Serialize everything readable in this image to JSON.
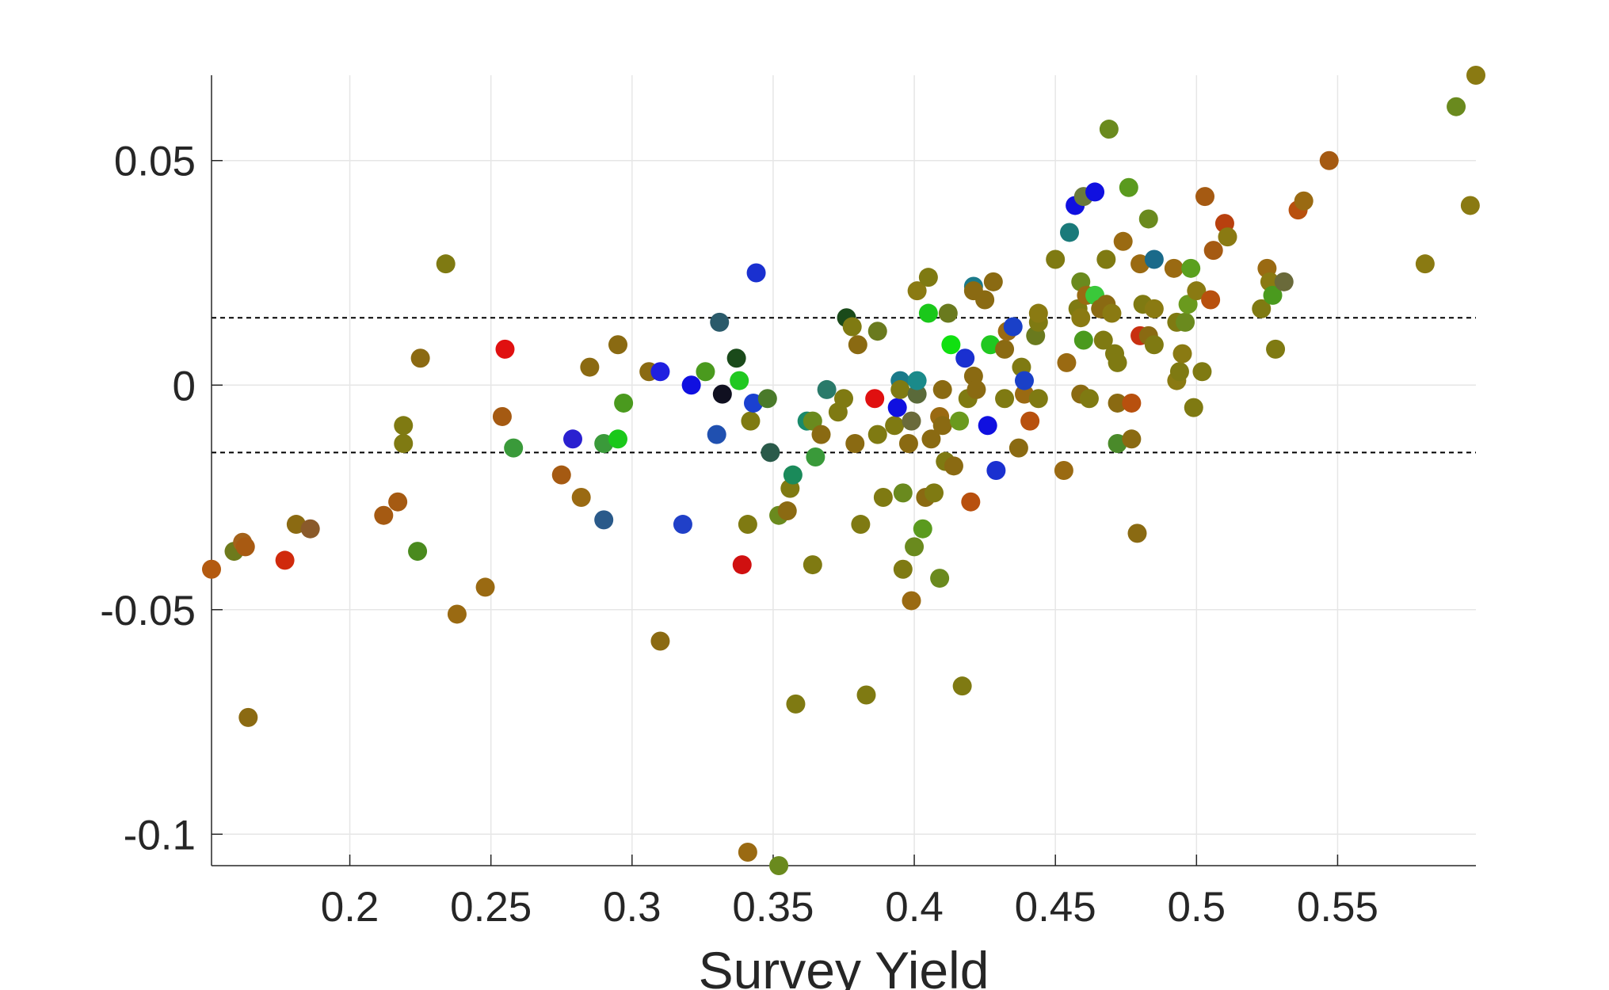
{
  "chart_data": {
    "type": "scatter",
    "title": "",
    "xlabel": "Survey Yield",
    "ylabel": "",
    "xlim": [
      0.151,
      0.599
    ],
    "ylim": [
      -0.107,
      0.069
    ],
    "xticks": [
      0.2,
      0.25,
      0.3,
      0.35,
      0.4,
      0.45,
      0.5,
      0.55
    ],
    "xtick_labels": [
      "0.2",
      "0.25",
      "0.3",
      "0.35",
      "0.4",
      "0.45",
      "0.5",
      "0.55"
    ],
    "yticks": [
      -0.1,
      -0.05,
      0,
      0.05
    ],
    "ytick_labels": [
      "-0.1",
      "-0.05",
      "0",
      "0.05"
    ],
    "grid": true,
    "reference_lines": [
      0.015,
      -0.015
    ],
    "reference_line_style": "dashed",
    "points": [
      {
        "x": 0.151,
        "y": -0.041,
        "color": "#b35a10"
      },
      {
        "x": 0.159,
        "y": -0.037,
        "color": "#6e7a1c"
      },
      {
        "x": 0.162,
        "y": -0.035,
        "color": "#a4621a"
      },
      {
        "x": 0.163,
        "y": -0.036,
        "color": "#a85a12"
      },
      {
        "x": 0.164,
        "y": -0.074,
        "color": "#8b6a12"
      },
      {
        "x": 0.177,
        "y": -0.039,
        "color": "#d02a0c"
      },
      {
        "x": 0.181,
        "y": -0.031,
        "color": "#8b6a12"
      },
      {
        "x": 0.186,
        "y": -0.032,
        "color": "#8a5a2a"
      },
      {
        "x": 0.212,
        "y": -0.029,
        "color": "#a55a12"
      },
      {
        "x": 0.217,
        "y": -0.026,
        "color": "#a55a12"
      },
      {
        "x": 0.219,
        "y": -0.009,
        "color": "#7f7a12"
      },
      {
        "x": 0.219,
        "y": -0.013,
        "color": "#7f7a12"
      },
      {
        "x": 0.224,
        "y": -0.037,
        "color": "#4a8a1e"
      },
      {
        "x": 0.225,
        "y": 0.006,
        "color": "#8b6a12"
      },
      {
        "x": 0.234,
        "y": 0.027,
        "color": "#7f7a12"
      },
      {
        "x": 0.238,
        "y": -0.051,
        "color": "#9a6a12"
      },
      {
        "x": 0.248,
        "y": -0.045,
        "color": "#9a6a12"
      },
      {
        "x": 0.254,
        "y": -0.007,
        "color": "#a55a12"
      },
      {
        "x": 0.255,
        "y": 0.008,
        "color": "#e01010"
      },
      {
        "x": 0.258,
        "y": -0.014,
        "color": "#3a9a3a"
      },
      {
        "x": 0.275,
        "y": -0.02,
        "color": "#a55a12"
      },
      {
        "x": 0.279,
        "y": -0.012,
        "color": "#2a20d0"
      },
      {
        "x": 0.282,
        "y": -0.025,
        "color": "#9a6a12"
      },
      {
        "x": 0.285,
        "y": 0.004,
        "color": "#8b6a12"
      },
      {
        "x": 0.29,
        "y": -0.013,
        "color": "#3a9a3a"
      },
      {
        "x": 0.29,
        "y": -0.03,
        "color": "#2a5a8a"
      },
      {
        "x": 0.295,
        "y": -0.012,
        "color": "#1ac81a"
      },
      {
        "x": 0.295,
        "y": 0.009,
        "color": "#8a6a12"
      },
      {
        "x": 0.297,
        "y": -0.004,
        "color": "#4a9a1e"
      },
      {
        "x": 0.306,
        "y": 0.003,
        "color": "#8a6a12"
      },
      {
        "x": 0.31,
        "y": 0.003,
        "color": "#2020e0"
      },
      {
        "x": 0.31,
        "y": -0.057,
        "color": "#8b6a12"
      },
      {
        "x": 0.318,
        "y": -0.031,
        "color": "#2040c8"
      },
      {
        "x": 0.321,
        "y": 0.0,
        "color": "#1010e0"
      },
      {
        "x": 0.326,
        "y": 0.003,
        "color": "#4a9a1e"
      },
      {
        "x": 0.33,
        "y": -0.011,
        "color": "#2050b0"
      },
      {
        "x": 0.331,
        "y": 0.014,
        "color": "#2a5a6a"
      },
      {
        "x": 0.332,
        "y": -0.002,
        "color": "#101020"
      },
      {
        "x": 0.337,
        "y": 0.006,
        "color": "#1a4a1a"
      },
      {
        "x": 0.338,
        "y": 0.001,
        "color": "#20c820"
      },
      {
        "x": 0.339,
        "y": -0.04,
        "color": "#d01010"
      },
      {
        "x": 0.341,
        "y": -0.031,
        "color": "#7f7a12"
      },
      {
        "x": 0.341,
        "y": -0.104,
        "color": "#9a6a12"
      },
      {
        "x": 0.342,
        "y": -0.008,
        "color": "#7f7a12"
      },
      {
        "x": 0.343,
        "y": -0.004,
        "color": "#1a40d0"
      },
      {
        "x": 0.344,
        "y": 0.025,
        "color": "#1a30d0"
      },
      {
        "x": 0.348,
        "y": -0.003,
        "color": "#4a7a2a"
      },
      {
        "x": 0.349,
        "y": -0.015,
        "color": "#2a5a4a"
      },
      {
        "x": 0.352,
        "y": -0.029,
        "color": "#6a8a1e"
      },
      {
        "x": 0.352,
        "y": -0.107,
        "color": "#6a8a1e"
      },
      {
        "x": 0.355,
        "y": -0.028,
        "color": "#8b6a12"
      },
      {
        "x": 0.356,
        "y": -0.023,
        "color": "#7f7a12"
      },
      {
        "x": 0.357,
        "y": -0.02,
        "color": "#1a8a5a"
      },
      {
        "x": 0.358,
        "y": -0.071,
        "color": "#7f7a12"
      },
      {
        "x": 0.362,
        "y": -0.008,
        "color": "#1a8a6a"
      },
      {
        "x": 0.364,
        "y": -0.008,
        "color": "#6a8a1e"
      },
      {
        "x": 0.364,
        "y": -0.04,
        "color": "#7f7a12"
      },
      {
        "x": 0.365,
        "y": -0.016,
        "color": "#3a9a3a"
      },
      {
        "x": 0.367,
        "y": -0.011,
        "color": "#8a6a12"
      },
      {
        "x": 0.369,
        "y": -0.001,
        "color": "#2a7a6a"
      },
      {
        "x": 0.373,
        "y": -0.006,
        "color": "#7f7a12"
      },
      {
        "x": 0.375,
        "y": -0.003,
        "color": "#7f7a12"
      },
      {
        "x": 0.376,
        "y": 0.015,
        "color": "#1a4a1a"
      },
      {
        "x": 0.378,
        "y": 0.013,
        "color": "#7f7a12"
      },
      {
        "x": 0.379,
        "y": -0.013,
        "color": "#8a6a12"
      },
      {
        "x": 0.38,
        "y": 0.009,
        "color": "#8a6a12"
      },
      {
        "x": 0.381,
        "y": -0.031,
        "color": "#7f7a12"
      },
      {
        "x": 0.383,
        "y": -0.069,
        "color": "#7f7a12"
      },
      {
        "x": 0.386,
        "y": -0.003,
        "color": "#e01010"
      },
      {
        "x": 0.387,
        "y": 0.012,
        "color": "#6a7a1e"
      },
      {
        "x": 0.387,
        "y": -0.011,
        "color": "#7f7a12"
      },
      {
        "x": 0.389,
        "y": -0.025,
        "color": "#7f7a12"
      },
      {
        "x": 0.393,
        "y": -0.009,
        "color": "#7f7a12"
      },
      {
        "x": 0.394,
        "y": -0.005,
        "color": "#1010e0"
      },
      {
        "x": 0.395,
        "y": 0.001,
        "color": "#1a7a8a"
      },
      {
        "x": 0.395,
        "y": -0.001,
        "color": "#7f7a12"
      },
      {
        "x": 0.396,
        "y": -0.041,
        "color": "#7f7a12"
      },
      {
        "x": 0.396,
        "y": -0.024,
        "color": "#6a8a1e"
      },
      {
        "x": 0.398,
        "y": -0.013,
        "color": "#8a6a12"
      },
      {
        "x": 0.399,
        "y": -0.048,
        "color": "#9a6a12"
      },
      {
        "x": 0.399,
        "y": -0.008,
        "color": "#6a6a3a"
      },
      {
        "x": 0.4,
        "y": -0.036,
        "color": "#6a8a1e"
      },
      {
        "x": 0.401,
        "y": 0.021,
        "color": "#8a7a12"
      },
      {
        "x": 0.401,
        "y": -0.002,
        "color": "#5a6a3a"
      },
      {
        "x": 0.401,
        "y": 0.001,
        "color": "#1a8a8a"
      },
      {
        "x": 0.403,
        "y": -0.032,
        "color": "#5a9a1e"
      },
      {
        "x": 0.404,
        "y": -0.025,
        "color": "#8a6a12"
      },
      {
        "x": 0.405,
        "y": 0.016,
        "color": "#1ac81a"
      },
      {
        "x": 0.405,
        "y": 0.024,
        "color": "#7f7a12"
      },
      {
        "x": 0.406,
        "y": -0.012,
        "color": "#8a6a12"
      },
      {
        "x": 0.407,
        "y": -0.024,
        "color": "#7f7a12"
      },
      {
        "x": 0.409,
        "y": -0.007,
        "color": "#9a6a12"
      },
      {
        "x": 0.409,
        "y": -0.043,
        "color": "#6a8a1e"
      },
      {
        "x": 0.41,
        "y": -0.001,
        "color": "#8a6a12"
      },
      {
        "x": 0.41,
        "y": -0.009,
        "color": "#8a6a12"
      },
      {
        "x": 0.411,
        "y": -0.017,
        "color": "#7f7a12"
      },
      {
        "x": 0.412,
        "y": 0.016,
        "color": "#6a7a1e"
      },
      {
        "x": 0.413,
        "y": 0.009,
        "color": "#10e010"
      },
      {
        "x": 0.414,
        "y": -0.018,
        "color": "#8a6a12"
      },
      {
        "x": 0.416,
        "y": -0.008,
        "color": "#6a9a1e"
      },
      {
        "x": 0.417,
        "y": -0.067,
        "color": "#7f7a12"
      },
      {
        "x": 0.418,
        "y": 0.006,
        "color": "#1a30d0"
      },
      {
        "x": 0.419,
        "y": -0.003,
        "color": "#7f7a12"
      },
      {
        "x": 0.42,
        "y": -0.026,
        "color": "#b8500e"
      },
      {
        "x": 0.421,
        "y": 0.002,
        "color": "#8a6a12"
      },
      {
        "x": 0.421,
        "y": 0.022,
        "color": "#1a7a8a"
      },
      {
        "x": 0.421,
        "y": 0.021,
        "color": "#8a6a12"
      },
      {
        "x": 0.422,
        "y": -0.001,
        "color": "#8a6a12"
      },
      {
        "x": 0.425,
        "y": 0.019,
        "color": "#8a6a12"
      },
      {
        "x": 0.426,
        "y": -0.009,
        "color": "#1010e0"
      },
      {
        "x": 0.427,
        "y": 0.009,
        "color": "#20c820"
      },
      {
        "x": 0.428,
        "y": 0.023,
        "color": "#8a6a12"
      },
      {
        "x": 0.429,
        "y": -0.019,
        "color": "#1a30d0"
      },
      {
        "x": 0.432,
        "y": -0.003,
        "color": "#7f7a12"
      },
      {
        "x": 0.432,
        "y": 0.008,
        "color": "#8a6a12"
      },
      {
        "x": 0.433,
        "y": 0.012,
        "color": "#9a6a12"
      },
      {
        "x": 0.435,
        "y": 0.013,
        "color": "#1a40c8"
      },
      {
        "x": 0.437,
        "y": -0.014,
        "color": "#8a6a12"
      },
      {
        "x": 0.438,
        "y": 0.004,
        "color": "#7f7a12"
      },
      {
        "x": 0.439,
        "y": -0.002,
        "color": "#9a6a12"
      },
      {
        "x": 0.439,
        "y": 0.001,
        "color": "#1a40c8"
      },
      {
        "x": 0.441,
        "y": -0.008,
        "color": "#b8500e"
      },
      {
        "x": 0.443,
        "y": 0.011,
        "color": "#6a7a1e"
      },
      {
        "x": 0.444,
        "y": 0.014,
        "color": "#7f7a12"
      },
      {
        "x": 0.444,
        "y": 0.016,
        "color": "#8a7a12"
      },
      {
        "x": 0.444,
        "y": -0.003,
        "color": "#7f7a12"
      },
      {
        "x": 0.45,
        "y": 0.028,
        "color": "#7f7a12"
      },
      {
        "x": 0.453,
        "y": -0.019,
        "color": "#9a6a12"
      },
      {
        "x": 0.454,
        "y": 0.005,
        "color": "#9a6a12"
      },
      {
        "x": 0.455,
        "y": 0.034,
        "color": "#1a7a7a"
      },
      {
        "x": 0.457,
        "y": 0.04,
        "color": "#1010e0"
      },
      {
        "x": 0.458,
        "y": 0.017,
        "color": "#7f7a12"
      },
      {
        "x": 0.459,
        "y": 0.023,
        "color": "#6a8a1e"
      },
      {
        "x": 0.459,
        "y": 0.015,
        "color": "#8a7a12"
      },
      {
        "x": 0.459,
        "y": -0.002,
        "color": "#8a6a12"
      },
      {
        "x": 0.46,
        "y": 0.01,
        "color": "#4a9a1e"
      },
      {
        "x": 0.46,
        "y": 0.042,
        "color": "#6a7a3a"
      },
      {
        "x": 0.461,
        "y": 0.02,
        "color": "#9a6a12"
      },
      {
        "x": 0.462,
        "y": -0.003,
        "color": "#7f7a12"
      },
      {
        "x": 0.464,
        "y": 0.02,
        "color": "#3ac83a"
      },
      {
        "x": 0.464,
        "y": 0.043,
        "color": "#1010e0"
      },
      {
        "x": 0.466,
        "y": 0.017,
        "color": "#8a6a12"
      },
      {
        "x": 0.467,
        "y": 0.01,
        "color": "#7f7a12"
      },
      {
        "x": 0.468,
        "y": 0.018,
        "color": "#8a6a12"
      },
      {
        "x": 0.468,
        "y": 0.028,
        "color": "#7f7a12"
      },
      {
        "x": 0.469,
        "y": 0.057,
        "color": "#6a8a1e"
      },
      {
        "x": 0.47,
        "y": 0.016,
        "color": "#8a7a12"
      },
      {
        "x": 0.471,
        "y": 0.007,
        "color": "#7f7a12"
      },
      {
        "x": 0.472,
        "y": 0.005,
        "color": "#7f7a12"
      },
      {
        "x": 0.472,
        "y": -0.004,
        "color": "#8a6a12"
      },
      {
        "x": 0.472,
        "y": -0.013,
        "color": "#4a8a2a"
      },
      {
        "x": 0.474,
        "y": 0.032,
        "color": "#9a6a12"
      },
      {
        "x": 0.476,
        "y": 0.044,
        "color": "#5a9a1e"
      },
      {
        "x": 0.477,
        "y": -0.004,
        "color": "#b8500e"
      },
      {
        "x": 0.477,
        "y": -0.012,
        "color": "#8a6a12"
      },
      {
        "x": 0.479,
        "y": -0.033,
        "color": "#8a6a12"
      },
      {
        "x": 0.48,
        "y": 0.011,
        "color": "#c83010"
      },
      {
        "x": 0.48,
        "y": 0.027,
        "color": "#9a6a12"
      },
      {
        "x": 0.481,
        "y": 0.018,
        "color": "#7f7a12"
      },
      {
        "x": 0.483,
        "y": 0.037,
        "color": "#6a8a1e"
      },
      {
        "x": 0.483,
        "y": 0.011,
        "color": "#8a6a12"
      },
      {
        "x": 0.485,
        "y": 0.009,
        "color": "#7f7a12"
      },
      {
        "x": 0.485,
        "y": 0.028,
        "color": "#1a6a8a"
      },
      {
        "x": 0.485,
        "y": 0.017,
        "color": "#8a7a12"
      },
      {
        "x": 0.492,
        "y": 0.026,
        "color": "#9a6a12"
      },
      {
        "x": 0.493,
        "y": 0.001,
        "color": "#8a7a12"
      },
      {
        "x": 0.493,
        "y": 0.014,
        "color": "#7f7a12"
      },
      {
        "x": 0.494,
        "y": 0.003,
        "color": "#7f7a12"
      },
      {
        "x": 0.495,
        "y": 0.007,
        "color": "#8a7a12"
      },
      {
        "x": 0.496,
        "y": 0.014,
        "color": "#6a8a1e"
      },
      {
        "x": 0.497,
        "y": 0.018,
        "color": "#6a9a1e"
      },
      {
        "x": 0.498,
        "y": 0.026,
        "color": "#5aa01e"
      },
      {
        "x": 0.499,
        "y": -0.005,
        "color": "#7f7a12"
      },
      {
        "x": 0.5,
        "y": 0.021,
        "color": "#8a7a12"
      },
      {
        "x": 0.502,
        "y": 0.003,
        "color": "#7f7a12"
      },
      {
        "x": 0.503,
        "y": 0.042,
        "color": "#a55a12"
      },
      {
        "x": 0.505,
        "y": 0.019,
        "color": "#b8500e"
      },
      {
        "x": 0.506,
        "y": 0.03,
        "color": "#a55a12"
      },
      {
        "x": 0.51,
        "y": 0.036,
        "color": "#b8400e"
      },
      {
        "x": 0.511,
        "y": 0.033,
        "color": "#8a7a12"
      },
      {
        "x": 0.523,
        "y": 0.017,
        "color": "#7f7a12"
      },
      {
        "x": 0.525,
        "y": 0.026,
        "color": "#9a6a12"
      },
      {
        "x": 0.526,
        "y": 0.023,
        "color": "#8a7a12"
      },
      {
        "x": 0.527,
        "y": 0.02,
        "color": "#4a9a1e"
      },
      {
        "x": 0.528,
        "y": 0.008,
        "color": "#7f7a12"
      },
      {
        "x": 0.531,
        "y": 0.023,
        "color": "#6a6a3a"
      },
      {
        "x": 0.536,
        "y": 0.039,
        "color": "#b8500e"
      },
      {
        "x": 0.538,
        "y": 0.041,
        "color": "#9a6a12"
      },
      {
        "x": 0.547,
        "y": 0.05,
        "color": "#a55a12"
      },
      {
        "x": 0.581,
        "y": 0.027,
        "color": "#8a7a12"
      },
      {
        "x": 0.592,
        "y": 0.062,
        "color": "#6a8a1e"
      },
      {
        "x": 0.597,
        "y": 0.04,
        "color": "#8a7a12"
      },
      {
        "x": 0.599,
        "y": 0.069,
        "color": "#8a7a12"
      }
    ]
  }
}
